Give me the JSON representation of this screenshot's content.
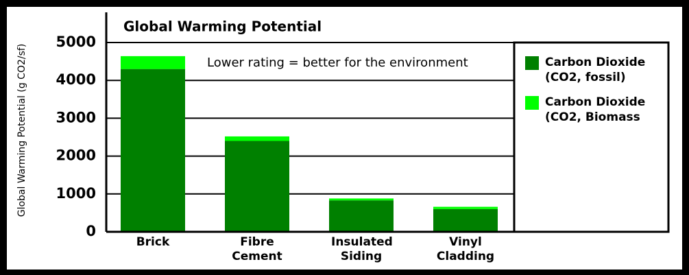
{
  "chart_data": {
    "type": "stacked_bar",
    "title": "Global Warming Potential",
    "annotation": "Lower rating = better for the environment",
    "y_label": "Global Warming Potential (g CO2/sf)",
    "categories": [
      "Brick",
      "Fibre Cement",
      "Insulated Siding",
      "Vinyl Cladding"
    ],
    "series": [
      {
        "name": "Carbon Dioxide (CO2, fossil)",
        "color": "#008000",
        "values": [
          4300,
          2400,
          830,
          600
        ]
      },
      {
        "name": "Carbon Dioxide (CO2, Biomass",
        "color": "#00ff00",
        "values": [
          340,
          120,
          50,
          60
        ]
      }
    ],
    "ylim": [
      0,
      5000
    ],
    "yticks": [
      0,
      1000,
      2000,
      3000,
      4000,
      5000
    ],
    "grid": true,
    "legend": "right"
  }
}
